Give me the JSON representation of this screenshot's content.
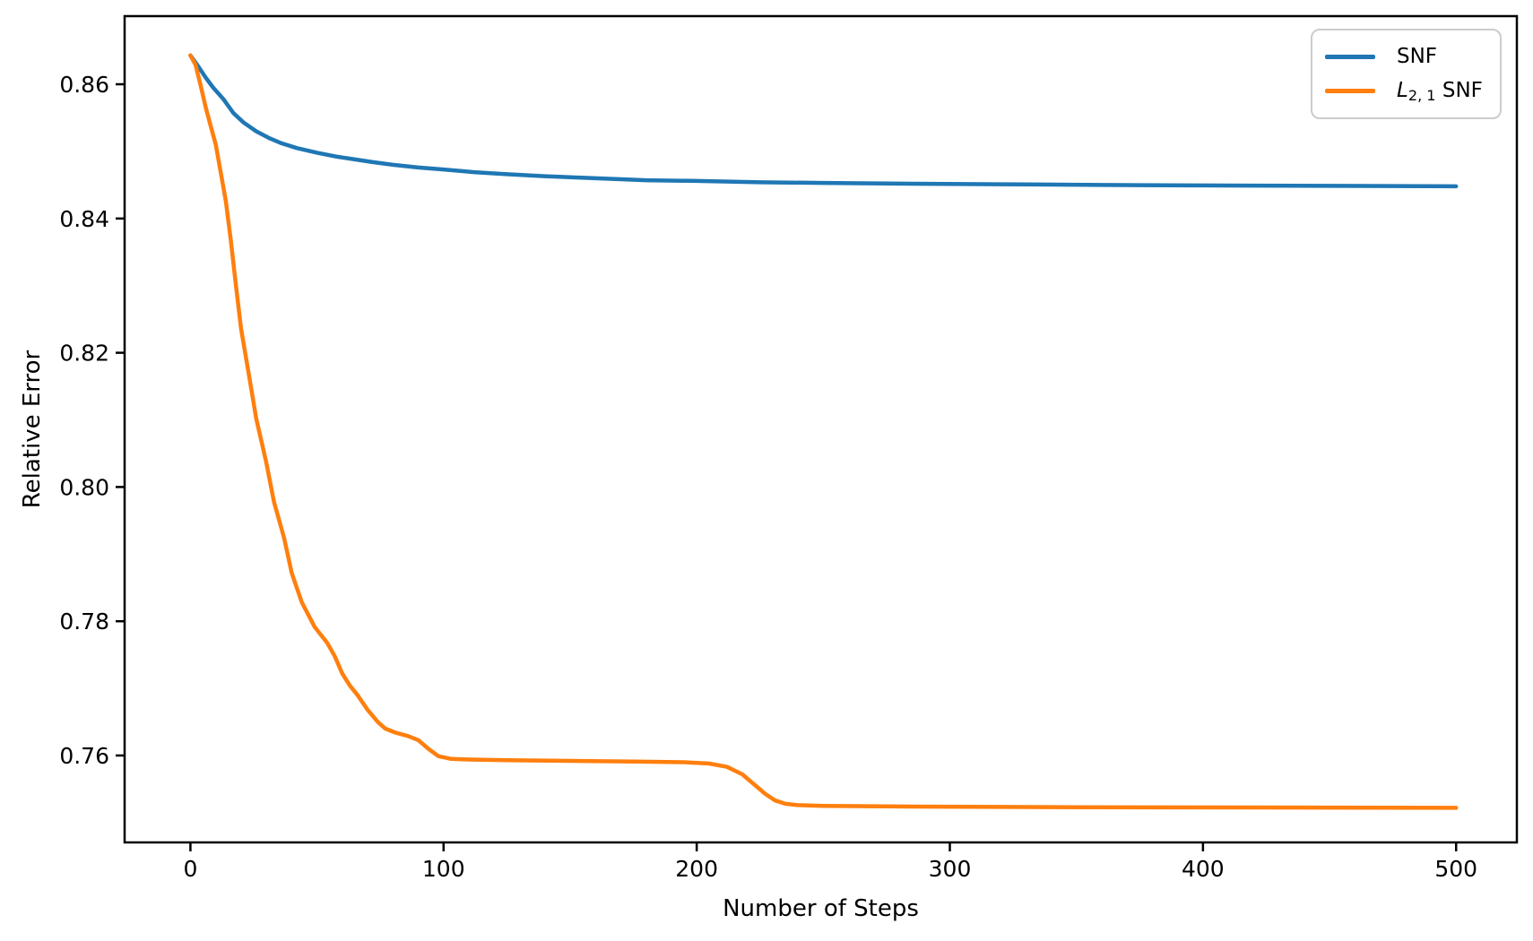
{
  "figure": {
    "background": "#ffffff"
  },
  "chart_data": {
    "type": "line",
    "title": "",
    "xlabel": "Number of Steps",
    "ylabel": "Relative Error",
    "xlim": [
      -26,
      524
    ],
    "ylim": [
      0.74705,
      0.87015
    ],
    "x_ticks": [
      0,
      100,
      200,
      300,
      400,
      500
    ],
    "x_tick_labels": [
      "0",
      "100",
      "200",
      "300",
      "400",
      "500"
    ],
    "y_ticks": [
      0.76,
      0.78,
      0.8,
      0.82,
      0.84,
      0.86
    ],
    "y_tick_labels": [
      "0.76",
      "0.78",
      "0.80",
      "0.82",
      "0.84",
      "0.86"
    ],
    "grid": false,
    "legend": {
      "position": "upper right",
      "items": [
        {
          "label": "SNF"
        },
        {
          "label": "L2,1 SNF",
          "label_prefix": "L",
          "label_sub": "2, 1",
          "label_suffix": " SNF"
        }
      ]
    },
    "series": [
      {
        "name": "SNF",
        "color": "#1f77b4",
        "points": [
          [
            0,
            0.8643
          ],
          [
            3,
            0.8627
          ],
          [
            6,
            0.861
          ],
          [
            9,
            0.8595
          ],
          [
            13,
            0.8578
          ],
          [
            17,
            0.8557
          ],
          [
            21,
            0.8543
          ],
          [
            26,
            0.853
          ],
          [
            31,
            0.852
          ],
          [
            36,
            0.8512
          ],
          [
            42,
            0.8505
          ],
          [
            50,
            0.8498
          ],
          [
            58,
            0.8492
          ],
          [
            65,
            0.8488
          ],
          [
            72,
            0.8484
          ],
          [
            80,
            0.848
          ],
          [
            90,
            0.8476
          ],
          [
            100,
            0.8473
          ],
          [
            112,
            0.8469
          ],
          [
            125,
            0.8466
          ],
          [
            140,
            0.8463
          ],
          [
            160,
            0.846
          ],
          [
            180,
            0.8457
          ],
          [
            200,
            0.8456
          ],
          [
            225,
            0.8454
          ],
          [
            250,
            0.8453
          ],
          [
            280,
            0.8452
          ],
          [
            320,
            0.8451
          ],
          [
            360,
            0.845
          ],
          [
            420,
            0.8449
          ],
          [
            500,
            0.8448
          ]
        ]
      },
      {
        "name": "L2,1 SNF",
        "color": "#ff7f0e",
        "points": [
          [
            0,
            0.8643
          ],
          [
            2,
            0.8629
          ],
          [
            4,
            0.8599
          ],
          [
            6,
            0.8566
          ],
          [
            8,
            0.8538
          ],
          [
            10,
            0.851
          ],
          [
            12,
            0.8468
          ],
          [
            14,
            0.8426
          ],
          [
            16,
            0.8366
          ],
          [
            18,
            0.83
          ],
          [
            20,
            0.8236
          ],
          [
            23,
            0.8169
          ],
          [
            26,
            0.8102
          ],
          [
            30,
            0.8036
          ],
          [
            33,
            0.7978
          ],
          [
            37,
            0.7924
          ],
          [
            40,
            0.7872
          ],
          [
            44,
            0.7828
          ],
          [
            49,
            0.7792
          ],
          [
            54,
            0.7768
          ],
          [
            57,
            0.7748
          ],
          [
            60,
            0.7722
          ],
          [
            63,
            0.7704
          ],
          [
            66,
            0.769
          ],
          [
            70,
            0.7668
          ],
          [
            74,
            0.765
          ],
          [
            77,
            0.764
          ],
          [
            81,
            0.7634
          ],
          [
            86,
            0.7629
          ],
          [
            90,
            0.7623
          ],
          [
            94,
            0.761
          ],
          [
            98,
            0.7599
          ],
          [
            103,
            0.7595
          ],
          [
            110,
            0.7594
          ],
          [
            125,
            0.7593
          ],
          [
            150,
            0.7592
          ],
          [
            175,
            0.7591
          ],
          [
            195,
            0.759
          ],
          [
            205,
            0.7588
          ],
          [
            212,
            0.7583
          ],
          [
            218,
            0.7572
          ],
          [
            223,
            0.7556
          ],
          [
            227,
            0.7543
          ],
          [
            231,
            0.7533
          ],
          [
            235,
            0.7528
          ],
          [
            240,
            0.7526
          ],
          [
            250,
            0.7525
          ],
          [
            280,
            0.7524
          ],
          [
            350,
            0.7523
          ],
          [
            500,
            0.7522
          ]
        ]
      }
    ]
  }
}
